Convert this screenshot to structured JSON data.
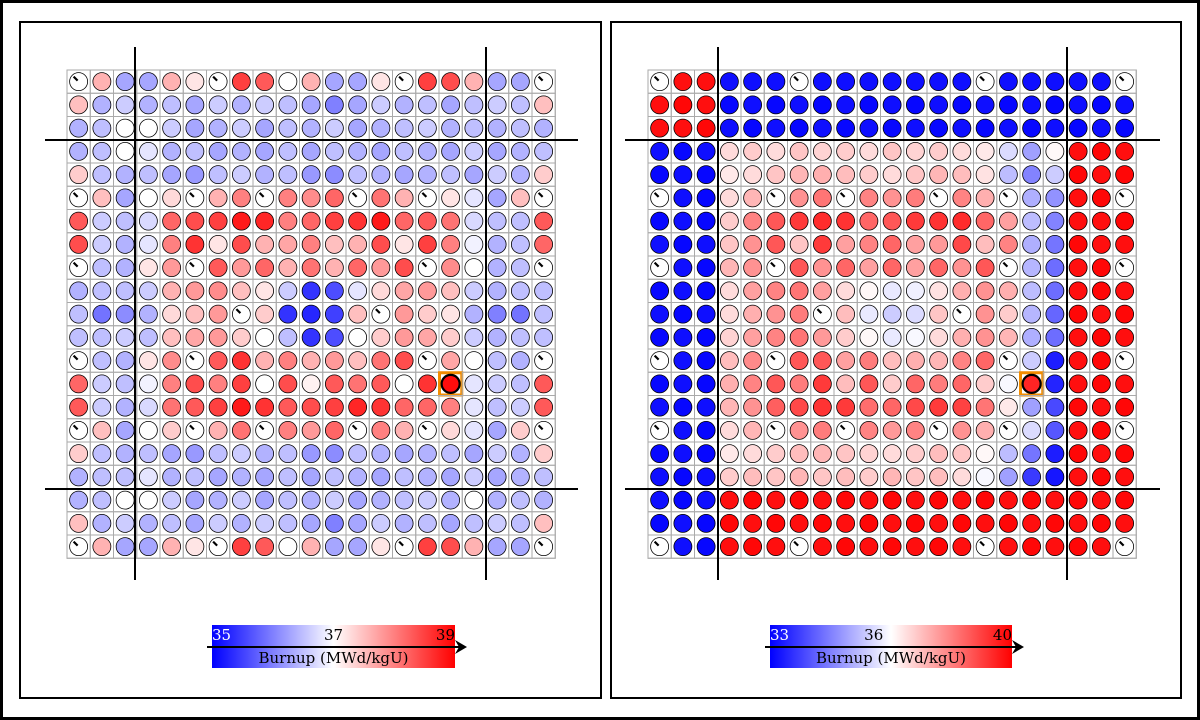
{
  "chart_data": [
    {
      "type": "heatmap",
      "colorbar_label": "Burnup (MWd/kgU)",
      "vlim": [
        35,
        39
      ],
      "cticks": [
        35,
        37,
        39
      ],
      "colormap": [
        "#0000ff",
        "#ffffff",
        "#ff0000"
      ],
      "highlight": [
        13,
        16
      ],
      "highlight_color": "#f28c00",
      "values": [
        [
          null,
          37.6,
          36.3,
          36.3,
          37.6,
          37.2,
          null,
          38.5,
          38.3,
          37.0,
          37.6,
          36.3,
          36.3,
          37.2,
          null,
          38.5,
          38.4,
          37.6,
          36.3,
          36.3,
          null
        ],
        [
          37.5,
          36.4,
          36.6,
          36.4,
          36.5,
          36.3,
          36.6,
          36.4,
          36.6,
          36.5,
          36.3,
          36.0,
          36.3,
          36.6,
          36.4,
          36.5,
          36.3,
          36.5,
          36.6,
          36.5,
          37.5
        ],
        [
          36.4,
          36.5,
          37.0,
          37.0,
          36.6,
          36.3,
          36.4,
          36.6,
          36.3,
          36.5,
          36.4,
          36.6,
          36.3,
          36.4,
          36.5,
          36.6,
          36.4,
          36.5,
          36.4,
          36.5,
          36.4
        ],
        [
          36.4,
          36.5,
          37.0,
          36.8,
          36.4,
          36.5,
          36.3,
          36.4,
          36.3,
          36.5,
          36.3,
          36.5,
          36.4,
          36.3,
          36.5,
          36.4,
          36.3,
          36.6,
          36.3,
          36.4,
          36.5
        ],
        [
          37.4,
          36.5,
          36.4,
          36.5,
          36.3,
          36.2,
          36.5,
          36.6,
          36.4,
          36.5,
          36.2,
          36.1,
          36.5,
          36.4,
          36.3,
          36.4,
          36.5,
          36.3,
          36.6,
          36.4,
          37.4
        ],
        [
          null,
          37.5,
          36.3,
          37.0,
          37.3,
          null,
          37.6,
          38.0,
          null,
          38.0,
          37.9,
          38.2,
          null,
          38.1,
          37.6,
          null,
          37.2,
          36.8,
          36.3,
          37.5,
          null
        ],
        [
          38.3,
          36.6,
          36.5,
          36.7,
          38.2,
          38.4,
          38.5,
          38.8,
          38.7,
          38.0,
          38.2,
          38.5,
          38.6,
          38.8,
          38.2,
          38.3,
          38.1,
          36.7,
          36.5,
          36.5,
          38.3
        ],
        [
          38.4,
          36.6,
          36.4,
          36.8,
          38.0,
          38.6,
          37.2,
          38.4,
          37.6,
          37.7,
          38.0,
          37.5,
          37.6,
          38.4,
          37.2,
          38.5,
          38.0,
          36.9,
          36.4,
          36.5,
          38.2
        ],
        [
          null,
          36.5,
          36.4,
          37.2,
          37.8,
          null,
          38.3,
          37.8,
          38.2,
          37.6,
          38.1,
          37.6,
          38.2,
          37.8,
          38.4,
          null,
          37.9,
          37.0,
          36.4,
          36.5,
          null
        ],
        [
          36.4,
          36.5,
          36.5,
          36.6,
          37.6,
          37.8,
          37.9,
          37.5,
          37.2,
          36.6,
          35.4,
          35.6,
          36.8,
          37.3,
          37.7,
          37.8,
          37.5,
          36.6,
          36.4,
          36.5,
          36.5
        ],
        [
          36.5,
          35.9,
          36.1,
          36.4,
          37.3,
          37.5,
          37.8,
          null,
          37.4,
          35.4,
          35.3,
          35.5,
          37.5,
          null,
          37.8,
          37.4,
          37.2,
          36.4,
          36.0,
          35.9,
          36.5
        ],
        [
          36.5,
          36.5,
          36.6,
          36.5,
          37.5,
          37.7,
          37.8,
          37.4,
          37.0,
          36.5,
          35.4,
          35.6,
          37.0,
          37.4,
          37.8,
          37.7,
          37.4,
          36.6,
          36.4,
          36.5,
          36.5
        ],
        [
          null,
          36.5,
          36.4,
          37.2,
          37.9,
          null,
          38.3,
          38.6,
          37.6,
          38.0,
          37.6,
          37.8,
          37.5,
          38.1,
          38.4,
          null,
          37.7,
          37.0,
          36.5,
          36.4,
          null
        ],
        [
          38.2,
          36.6,
          36.5,
          36.9,
          38.0,
          38.4,
          38.0,
          38.5,
          37.0,
          38.4,
          37.1,
          38.3,
          38.1,
          38.3,
          37.0,
          38.6,
          38.9,
          36.8,
          36.6,
          36.5,
          38.3
        ],
        [
          38.3,
          36.6,
          36.4,
          36.7,
          38.1,
          38.3,
          38.5,
          38.8,
          38.6,
          38.3,
          38.4,
          38.5,
          38.7,
          38.6,
          38.2,
          38.2,
          38.0,
          36.8,
          36.5,
          36.6,
          38.3
        ],
        [
          null,
          37.5,
          36.3,
          37.0,
          37.4,
          null,
          37.6,
          38.1,
          null,
          38.0,
          37.8,
          38.2,
          null,
          38.0,
          37.6,
          null,
          37.3,
          36.8,
          36.3,
          37.4,
          null
        ],
        [
          37.4,
          36.5,
          36.4,
          36.5,
          36.3,
          36.2,
          36.5,
          36.6,
          36.4,
          36.5,
          36.2,
          36.1,
          36.5,
          36.4,
          36.3,
          36.4,
          36.5,
          36.3,
          36.6,
          36.4,
          37.4
        ],
        [
          36.4,
          36.5,
          36.5,
          36.8,
          36.4,
          36.5,
          36.3,
          36.4,
          36.3,
          36.5,
          36.3,
          36.5,
          36.4,
          36.3,
          36.5,
          36.4,
          36.3,
          36.6,
          36.3,
          36.4,
          36.5
        ],
        [
          36.4,
          36.5,
          37.0,
          37.0,
          36.6,
          36.3,
          36.4,
          36.6,
          36.3,
          36.5,
          36.4,
          36.6,
          36.3,
          36.4,
          36.5,
          36.6,
          36.4,
          37.0,
          36.4,
          36.5,
          36.4
        ],
        [
          37.5,
          36.4,
          36.6,
          36.4,
          36.5,
          36.3,
          36.6,
          36.4,
          36.6,
          36.5,
          36.3,
          36.0,
          36.3,
          36.6,
          36.4,
          36.5,
          36.3,
          36.5,
          36.6,
          36.5,
          37.5
        ],
        [
          null,
          37.6,
          36.3,
          36.3,
          37.6,
          37.2,
          null,
          38.5,
          38.3,
          37.0,
          37.6,
          36.3,
          36.3,
          37.2,
          null,
          38.5,
          38.4,
          37.6,
          36.3,
          36.3,
          null
        ]
      ]
    },
    {
      "type": "heatmap",
      "colorbar_label": "Burnup (MWd/kgU)",
      "vlim": [
        33,
        40
      ],
      "cticks": [
        33,
        36,
        40
      ],
      "colormap": [
        "#0000ff",
        "#ffffff",
        "#ff0000"
      ],
      "highlight": [
        13,
        16
      ],
      "highlight_color": "#f28c00",
      "values": [
        [
          null,
          39.8,
          39.8,
          33.2,
          33.2,
          33.2,
          null,
          33.2,
          33.2,
          33.2,
          33.2,
          33.2,
          33.2,
          33.2,
          null,
          33.2,
          33.2,
          33.2,
          33.2,
          33.2,
          null
        ],
        [
          39.8,
          39.9,
          39.8,
          33.1,
          33.2,
          33.1,
          33.2,
          33.1,
          33.2,
          33.1,
          33.2,
          33.1,
          33.2,
          33.1,
          33.2,
          33.1,
          33.2,
          33.1,
          33.2,
          33.1,
          33.2
        ],
        [
          39.8,
          39.8,
          39.9,
          33.2,
          33.1,
          33.2,
          33.1,
          33.2,
          33.1,
          33.2,
          33.1,
          33.2,
          33.1,
          33.2,
          33.1,
          33.2,
          33.1,
          33.2,
          33.1,
          33.2,
          33.1
        ],
        [
          33.2,
          33.1,
          33.2,
          37.0,
          37.2,
          37.0,
          37.3,
          37.1,
          37.2,
          37.0,
          37.3,
          37.1,
          37.2,
          37.0,
          36.8,
          36.0,
          35.2,
          36.6,
          39.8,
          39.9,
          39.8
        ],
        [
          33.1,
          33.2,
          33.1,
          36.8,
          37.0,
          37.3,
          37.5,
          37.6,
          37.4,
          37.2,
          37.0,
          37.3,
          37.5,
          37.4,
          36.9,
          35.6,
          34.8,
          35.8,
          39.9,
          39.8,
          39.9
        ],
        [
          null,
          33.2,
          33.1,
          37.0,
          37.5,
          null,
          38.0,
          38.4,
          null,
          38.2,
          38.0,
          38.3,
          null,
          38.2,
          37.6,
          null,
          35.4,
          35.0,
          39.8,
          39.9,
          null
        ],
        [
          33.1,
          33.2,
          33.1,
          37.2,
          38.2,
          38.8,
          39.2,
          39.4,
          39.3,
          38.6,
          38.8,
          39.2,
          39.3,
          39.4,
          38.6,
          37.8,
          35.6,
          34.8,
          39.8,
          39.8,
          39.9
        ],
        [
          33.2,
          33.1,
          33.2,
          37.3,
          38.0,
          38.8,
          37.3,
          39.2,
          37.8,
          38.2,
          38.6,
          37.8,
          37.9,
          39.0,
          37.4,
          38.2,
          35.4,
          34.6,
          39.9,
          39.8,
          39.8
        ],
        [
          null,
          33.2,
          33.1,
          37.5,
          38.0,
          null,
          38.8,
          38.0,
          38.6,
          37.8,
          38.6,
          37.8,
          38.6,
          38.0,
          38.8,
          null,
          35.5,
          34.5,
          39.8,
          39.9,
          null
        ],
        [
          33.1,
          33.2,
          33.1,
          37.0,
          37.8,
          38.2,
          38.4,
          37.8,
          37.0,
          36.6,
          36.2,
          36.3,
          36.9,
          37.6,
          38.0,
          37.6,
          35.6,
          34.5,
          39.8,
          39.9,
          39.8
        ],
        [
          33.2,
          33.1,
          33.2,
          37.0,
          37.6,
          38.0,
          38.3,
          null,
          37.4,
          36.2,
          35.8,
          36.0,
          37.3,
          null,
          38.0,
          37.2,
          35.5,
          34.4,
          39.9,
          39.8,
          39.9
        ],
        [
          33.1,
          33.2,
          33.1,
          37.1,
          37.8,
          38.2,
          38.4,
          37.9,
          37.2,
          36.6,
          36.2,
          36.4,
          37.0,
          37.6,
          38.0,
          37.5,
          35.4,
          34.5,
          39.8,
          39.9,
          39.8
        ],
        [
          null,
          33.2,
          33.1,
          37.4,
          38.1,
          null,
          38.8,
          38.8,
          37.8,
          38.3,
          37.4,
          37.6,
          37.5,
          38.2,
          38.6,
          null,
          35.8,
          33.4,
          39.8,
          39.9,
          null
        ],
        [
          33.1,
          33.2,
          33.1,
          37.6,
          38.2,
          38.8,
          38.3,
          39.2,
          37.4,
          38.8,
          37.2,
          38.6,
          38.3,
          38.6,
          37.2,
          36.4,
          39.5,
          33.5,
          39.8,
          39.9,
          39.8
        ],
        [
          33.2,
          33.1,
          33.2,
          37.5,
          38.0,
          38.7,
          39.0,
          39.3,
          39.2,
          38.5,
          38.6,
          39.0,
          39.2,
          39.1,
          38.4,
          36.8,
          35.2,
          34.0,
          39.9,
          39.8,
          39.9
        ],
        [
          null,
          33.2,
          33.1,
          37.0,
          37.5,
          null,
          38.0,
          38.3,
          null,
          38.2,
          37.9,
          38.2,
          null,
          38.0,
          37.6,
          null,
          36.0,
          34.2,
          39.8,
          39.9,
          null
        ],
        [
          33.1,
          33.2,
          33.1,
          36.8,
          37.0,
          37.2,
          37.4,
          37.5,
          37.3,
          37.1,
          37.0,
          37.2,
          37.4,
          37.3,
          36.6,
          35.6,
          34.6,
          33.4,
          39.9,
          39.8,
          39.9
        ],
        [
          33.2,
          33.1,
          33.2,
          37.2,
          37.4,
          37.3,
          37.5,
          37.3,
          37.4,
          37.2,
          37.5,
          37.3,
          37.4,
          37.0,
          36.4,
          35.2,
          33.8,
          33.3,
          39.8,
          39.9,
          39.8
        ],
        [
          33.2,
          33.1,
          33.2,
          39.8,
          39.9,
          39.8,
          39.9,
          39.8,
          39.9,
          39.8,
          39.9,
          39.8,
          39.9,
          39.8,
          39.9,
          39.8,
          39.9,
          39.8,
          39.9,
          39.8,
          39.9
        ],
        [
          33.1,
          33.2,
          33.1,
          39.9,
          39.8,
          39.9,
          39.8,
          39.9,
          39.8,
          39.9,
          39.8,
          39.9,
          39.8,
          39.9,
          39.8,
          39.9,
          39.8,
          39.9,
          39.8,
          39.9,
          39.8
        ],
        [
          null,
          33.2,
          33.1,
          39.8,
          39.9,
          39.8,
          null,
          39.8,
          39.9,
          39.8,
          39.9,
          39.8,
          39.9,
          39.8,
          null,
          39.8,
          39.9,
          39.8,
          39.9,
          39.8,
          null
        ]
      ]
    }
  ]
}
